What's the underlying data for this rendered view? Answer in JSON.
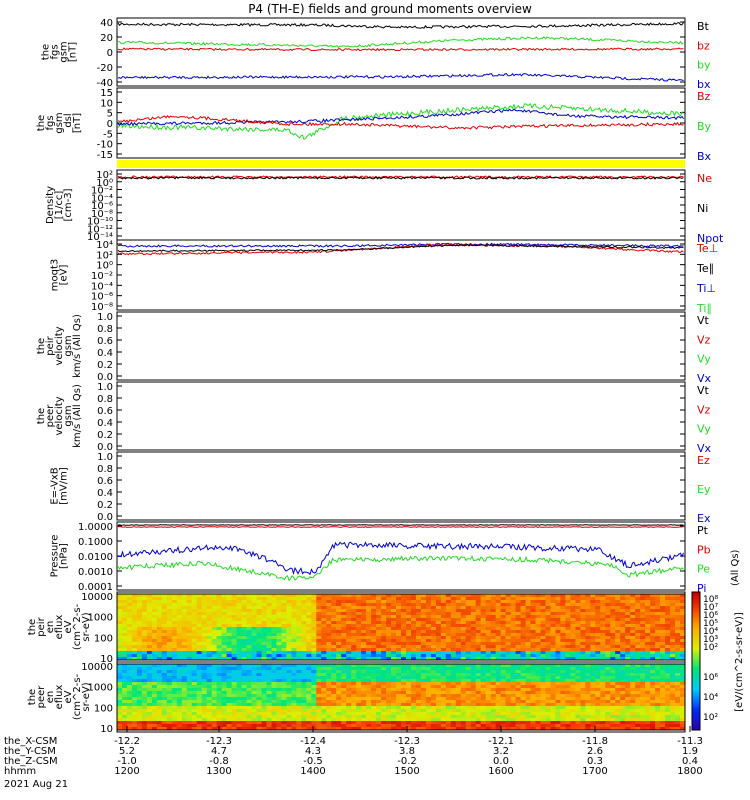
{
  "title": "P4 (TH-E) fields and ground moments overview",
  "colors": {
    "black": "#000000",
    "red": "#e00000",
    "green": "#22dd22",
    "blue": "#0000cc",
    "yellow": "#ffff00"
  },
  "panels": [
    {
      "id": "fgs_gsm",
      "ylabel": [
        "the",
        "fgs",
        "gsm",
        "[nT]"
      ],
      "yticks": [
        "40",
        "20",
        "0",
        "-20",
        "-40"
      ],
      "legend": [
        {
          "text": "Bt",
          "color": "black"
        },
        {
          "text": "bz",
          "color": "red"
        },
        {
          "text": "by",
          "color": "green"
        },
        {
          "text": "bx",
          "color": "blue"
        }
      ]
    },
    {
      "id": "fgs_dsl",
      "ylabel": [
        "the",
        "fgs",
        "gsm",
        "_dsl",
        "[nT]"
      ],
      "yticks": [
        "15",
        "10",
        "5",
        "0",
        "-5",
        "-10",
        "-15"
      ],
      "legend": [
        {
          "text": "Bz",
          "color": "red"
        },
        {
          "text": "By",
          "color": "green"
        },
        {
          "text": "Bx",
          "color": "blue"
        }
      ]
    },
    {
      "id": "density",
      "ylabel": [
        "Density",
        "[1/cc]",
        "[cm-3]"
      ],
      "yticks": [
        "10²",
        "10⁰",
        "10⁻²",
        "10⁻⁴",
        "10⁻⁶",
        "10⁻⁸",
        "10⁻¹⁰",
        "10⁻¹²",
        "10⁻¹⁴"
      ],
      "legend": [
        {
          "text": "Ne",
          "color": "red"
        },
        {
          "text": "Ni",
          "color": "black"
        },
        {
          "text": "Npot",
          "color": "blue"
        }
      ]
    },
    {
      "id": "temp",
      "ylabel": [
        "moqt3",
        "[eV]"
      ],
      "yticks": [
        "10⁴",
        "10²",
        "10⁰",
        "10⁻²",
        "10⁻⁴",
        "10⁻⁶",
        "10⁻⁸"
      ],
      "legend": [
        {
          "text": "Te⊥",
          "color": "red"
        },
        {
          "text": "Te∥",
          "color": "black"
        },
        {
          "text": "Ti⊥",
          "color": "blue"
        },
        {
          "text": "Ti∥",
          "color": "green"
        }
      ]
    },
    {
      "id": "peir_vel",
      "ylabel": [
        "the",
        "peir",
        "velocity",
        "gsm",
        "km/s (All Qs)"
      ],
      "yticks": [
        "1.0",
        "0.8",
        "0.6",
        "0.4",
        "0.2",
        "0.0"
      ],
      "legend": [
        {
          "text": "Vt",
          "color": "black"
        },
        {
          "text": "Vz",
          "color": "red"
        },
        {
          "text": "Vy",
          "color": "green"
        },
        {
          "text": "Vx",
          "color": "blue"
        }
      ]
    },
    {
      "id": "peer_vel",
      "ylabel": [
        "the",
        "peer",
        "velocity",
        "gsm",
        "km/s (All Qs)"
      ],
      "yticks": [
        "1.0",
        "0.8",
        "0.6",
        "0.4",
        "0.2",
        "0.0"
      ],
      "legend": [
        {
          "text": "Vt",
          "color": "black"
        },
        {
          "text": "Vz",
          "color": "red"
        },
        {
          "text": "Vy",
          "color": "green"
        },
        {
          "text": "Vx",
          "color": "blue"
        }
      ]
    },
    {
      "id": "efield",
      "ylabel": [
        "E=-VxB",
        "[mV/m]"
      ],
      "yticks": [
        "1.0",
        "0.8",
        "0.6",
        "0.4",
        "0.2",
        "0.0"
      ],
      "legend": [
        {
          "text": "Ez",
          "color": "red"
        },
        {
          "text": "Ey",
          "color": "green"
        },
        {
          "text": "Ex",
          "color": "blue"
        }
      ]
    },
    {
      "id": "pressure",
      "ylabel": [
        "Pressure",
        "[nPa]"
      ],
      "yticks": [
        "1.0000",
        "0.1000",
        "0.0100",
        "0.0010",
        "0.0001"
      ],
      "legend": [
        {
          "text": "Pt",
          "color": "black"
        },
        {
          "text": "Pb",
          "color": "red"
        },
        {
          "text": "Pe",
          "color": "green"
        },
        {
          "text": "Pi",
          "color": "blue"
        }
      ],
      "right_label": "(All Qs)"
    },
    {
      "id": "peir_spec",
      "ylabel": [
        "the",
        "peir",
        "en",
        "eflux",
        "eV",
        "(cm^2-s-",
        "sr-eV)"
      ],
      "yticks": [
        "10000",
        "1000",
        "100",
        "10"
      ]
    },
    {
      "id": "peer_spec",
      "ylabel": [
        "the",
        "peer",
        "en",
        "eflux",
        "eV",
        "(cm^2-s-",
        "sr-eV)"
      ],
      "yticks": [
        "10000",
        "1000",
        "100",
        "10"
      ]
    }
  ],
  "colorbar": {
    "ticks": [
      "10⁸",
      "10⁷",
      "10⁶",
      "10⁵",
      "10⁴",
      "10³",
      "10²"
    ],
    "ticks_bottom": [
      "10⁶",
      "10⁴",
      "10²"
    ],
    "label": "[eV/(cm^2-s-sr-eV)]"
  },
  "xaxis": {
    "rows": [
      {
        "label": "the_X-CSM",
        "values": [
          "-12.2",
          "-12.3",
          "-12.4",
          "-12.3",
          "-12.1",
          "-11.8",
          "-11.3"
        ]
      },
      {
        "label": "the_Y-CSM",
        "values": [
          "5.2",
          "4.7",
          "4.3",
          "3.8",
          "3.2",
          "2.6",
          "1.9"
        ]
      },
      {
        "label": "the_Z-CSM",
        "values": [
          "-1.0",
          "-0.8",
          "-0.5",
          "-0.2",
          "0.0",
          "0.3",
          "0.4"
        ]
      },
      {
        "label": "hhmm",
        "values": [
          "1200",
          "1300",
          "1400",
          "1500",
          "1600",
          "1700",
          "1800"
        ]
      }
    ],
    "date": "2021 Aug 21"
  },
  "chart_data": [
    {
      "type": "line",
      "title": "P4 (TH-E) fields and ground moments overview",
      "ylabel": "the fgs gsm [nT]",
      "ylim": [
        -45,
        45
      ],
      "x": [
        1200,
        1300,
        1400,
        1500,
        1600,
        1700,
        1800
      ],
      "series": [
        {
          "name": "Bt",
          "values": [
            36,
            37,
            36,
            35,
            36,
            36,
            38
          ]
        },
        {
          "name": "bz",
          "values": [
            4,
            5,
            4,
            3,
            4,
            3,
            4
          ]
        },
        {
          "name": "by",
          "values": [
            13,
            10,
            8,
            16,
            19,
            16,
            12
          ]
        },
        {
          "name": "bx",
          "values": [
            -34,
            -35,
            -35,
            -32,
            -31,
            -33,
            -38
          ]
        }
      ]
    },
    {
      "type": "line",
      "ylabel": "the fgs gsm_dsl [nT]",
      "ylim": [
        -17,
        15
      ],
      "x": [
        1200,
        1300,
        1400,
        1500,
        1600,
        1700,
        1800
      ],
      "series": [
        {
          "name": "Bz",
          "values": [
            0,
            1,
            -1,
            -2,
            -3,
            -1,
            -2
          ]
        },
        {
          "name": "By",
          "values": [
            -2,
            -4,
            0,
            5,
            7,
            6,
            4
          ]
        },
        {
          "name": "Bx",
          "values": [
            -1,
            0,
            2,
            3,
            5,
            3,
            2
          ]
        }
      ]
    },
    {
      "type": "line",
      "ylabel": "Density [1/cc]",
      "x": [
        1200,
        1300,
        1400,
        1500,
        1600,
        1700,
        1800
      ],
      "series": [
        {
          "name": "Ne",
          "values": [
            0.4,
            0.6,
            0.5,
            0.5,
            0.6,
            0.5,
            0.4
          ]
        },
        {
          "name": "Ni",
          "values": [
            0.3,
            0.5,
            0.5,
            0.5,
            0.5,
            0.4,
            0.3
          ]
        }
      ]
    },
    {
      "type": "line",
      "ylabel": "moqt3 [eV]",
      "x": [
        1200,
        1300,
        1400,
        1500,
        1600,
        1700,
        1800
      ],
      "series": [
        {
          "name": "Te⊥",
          "values": [
            150,
            170,
            250,
            1200,
            1600,
            800,
            400
          ]
        },
        {
          "name": "Ti⊥",
          "values": [
            2000,
            2500,
            4000,
            6000,
            7000,
            5000,
            3000
          ]
        }
      ]
    },
    {
      "type": "line",
      "ylabel": "Pressure [nPa]",
      "ylim": [
        0.0001,
        1
      ],
      "x": [
        1200,
        1300,
        1400,
        1500,
        1600,
        1700,
        1800
      ],
      "series": [
        {
          "name": "Pt",
          "values": [
            0.9,
            0.9,
            0.9,
            0.9,
            0.9,
            0.9,
            0.9
          ]
        },
        {
          "name": "Pb",
          "values": [
            0.85,
            0.85,
            0.85,
            0.85,
            0.85,
            0.85,
            0.85
          ]
        },
        {
          "name": "Pe",
          "values": [
            0.003,
            0.001,
            0.002,
            0.01,
            0.012,
            0.006,
            0.003
          ]
        },
        {
          "name": "Pi",
          "values": [
            0.01,
            0.005,
            0.006,
            0.04,
            0.05,
            0.03,
            0.015
          ]
        }
      ]
    },
    {
      "type": "heatmap",
      "ylabel": "the peir en eflux eV",
      "yrange": [
        5,
        30000
      ],
      "x": [
        1200,
        1300,
        1400,
        1500,
        1600,
        1700,
        1800
      ]
    },
    {
      "type": "heatmap",
      "ylabel": "the peer en eflux eV",
      "yrange": [
        5,
        30000
      ],
      "x": [
        1200,
        1300,
        1400,
        1500,
        1600,
        1700,
        1800
      ]
    }
  ]
}
